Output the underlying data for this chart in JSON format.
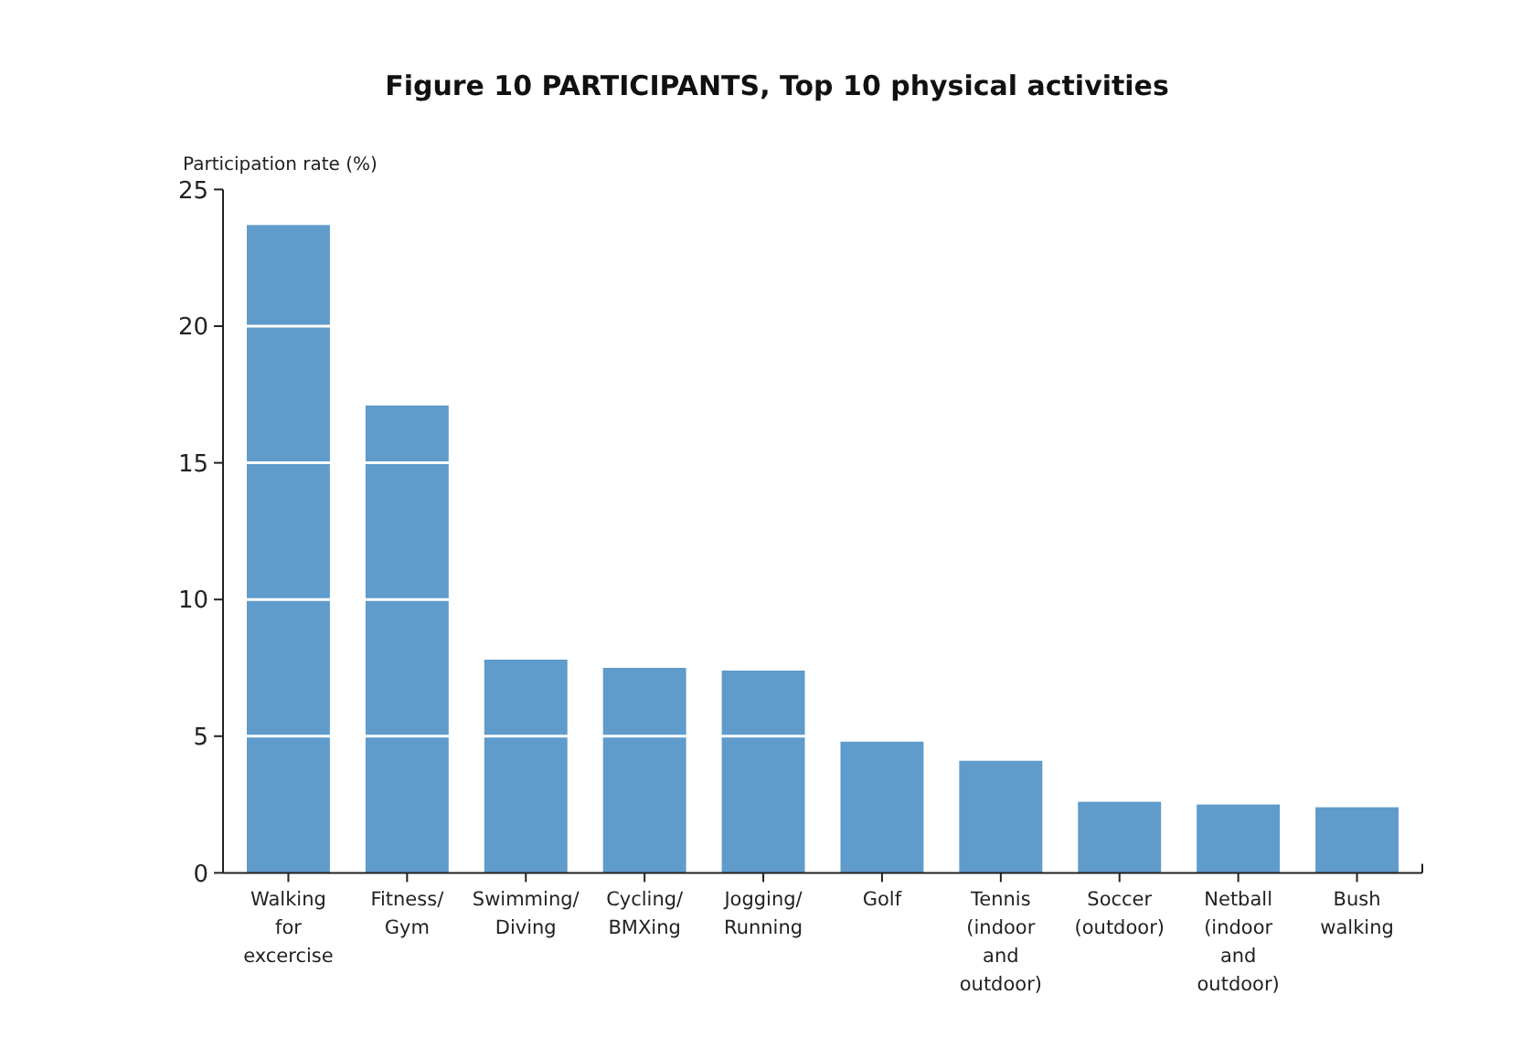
{
  "chart_data": {
    "type": "bar",
    "title": "Figure 10 PARTICIPANTS, Top 10 physical activities",
    "ylabel": "Participation rate (%)",
    "categories": [
      "Walking for excercise",
      "Fitness/ Gym",
      "Swimming/ Diving",
      "Cycling/ BMXing",
      "Jogging/ Running",
      "Golf",
      "Tennis (indoor and outdoor)",
      "Soccer (outdoor)",
      "Netball (indoor and outdoor)",
      "Bush walking"
    ],
    "values": [
      23.7,
      17.1,
      7.8,
      7.5,
      7.4,
      4.8,
      4.1,
      2.6,
      2.5,
      2.4
    ],
    "color": "#5f9bcb",
    "ylim": [
      0,
      25
    ],
    "yticks": [
      0,
      5,
      10,
      15,
      20,
      25
    ],
    "grid": "y"
  }
}
